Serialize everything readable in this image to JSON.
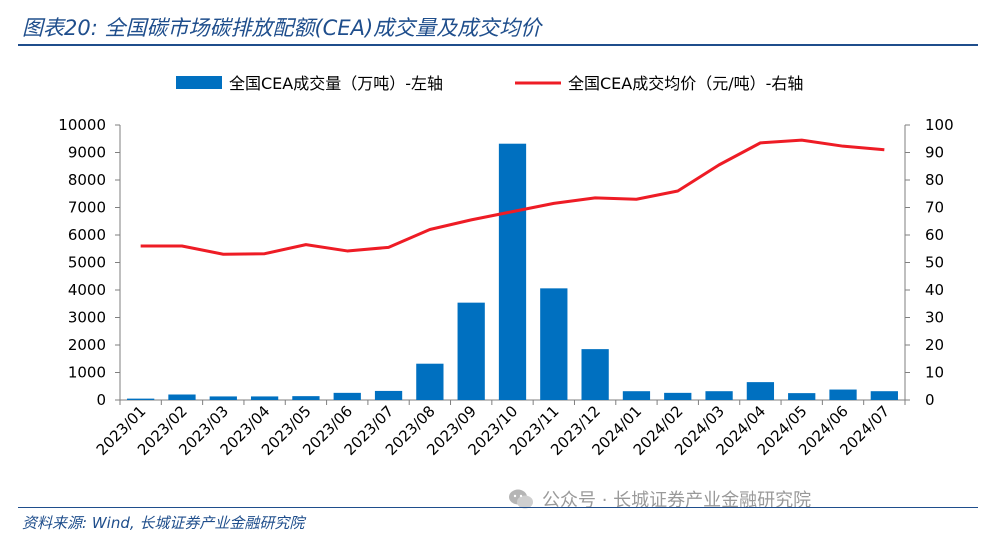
{
  "header": {
    "title": "图表20: 全国碳市场碳排放配额(CEA)成交量及成交均价"
  },
  "footer": {
    "source": "资料来源: Wind, 长城证券产业金融研究院",
    "watermark": "公众号 · 长城证券产业金融研究院"
  },
  "colors": {
    "bar": "#0070c0",
    "line": "#ee1c25",
    "title": "#1f4e8c"
  },
  "chart_data": {
    "type": "bar+line",
    "categories": [
      "2023/01",
      "2023/02",
      "2023/03",
      "2023/04",
      "2023/05",
      "2023/06",
      "2023/07",
      "2023/08",
      "2023/09",
      "2023/10",
      "2023/11",
      "2023/12",
      "2024/01",
      "2024/02",
      "2024/03",
      "2024/04",
      "2024/05",
      "2024/06",
      "2024/07"
    ],
    "series": [
      {
        "name": "全国CEA成交量(万吨)-左轴",
        "type": "bar",
        "axis": "left",
        "values": [
          50,
          200,
          130,
          130,
          140,
          260,
          330,
          1320,
          3540,
          9320,
          4060,
          1850,
          320,
          260,
          320,
          650,
          250,
          380,
          320
        ]
      },
      {
        "name": "全国CEA成交均价(元/吨)-右轴",
        "type": "line",
        "axis": "right",
        "values": [
          56,
          56,
          53,
          53.2,
          56.5,
          54.2,
          55.5,
          62,
          65.5,
          68.5,
          71.5,
          73.5,
          73,
          76,
          85.5,
          93.5,
          94.5,
          92.3,
          91
        ]
      }
    ],
    "yleft": {
      "min": 0,
      "max": 10000,
      "ticks": [
        0,
        1000,
        2000,
        3000,
        4000,
        5000,
        6000,
        7000,
        8000,
        9000,
        10000
      ]
    },
    "yright": {
      "min": 0,
      "max": 100,
      "ticks": [
        0,
        10,
        20,
        30,
        40,
        50,
        60,
        70,
        80,
        90,
        100
      ]
    },
    "legend": {
      "placement": "top-center",
      "labels": [
        "全国CEA成交量（万吨）-左轴",
        "全国CEA成交均价（元/吨）-右轴"
      ]
    },
    "grid": false
  }
}
